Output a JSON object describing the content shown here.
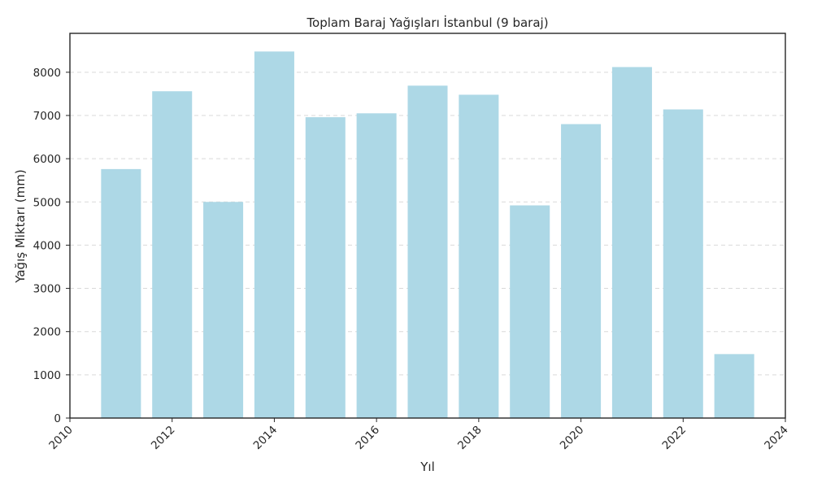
{
  "chart_data": {
    "type": "bar",
    "title": "Toplam Baraj Yağışları İstanbul (9 baraj)",
    "xlabel": "Yıl",
    "ylabel": "Yağış Miktarı (mm)",
    "x": [
      2011,
      2012,
      2013,
      2014,
      2015,
      2016,
      2017,
      2018,
      2019,
      2020,
      2021,
      2022,
      2023
    ],
    "values": [
      5760,
      7560,
      5000,
      8480,
      6960,
      7050,
      7690,
      7480,
      4920,
      6800,
      8120,
      7140,
      1480
    ],
    "xlim": [
      2010,
      2024
    ],
    "ylim": [
      0,
      8900
    ],
    "xticks": [
      2010,
      2012,
      2014,
      2016,
      2018,
      2020,
      2022,
      2024
    ],
    "yticks": [
      0,
      1000,
      2000,
      3000,
      4000,
      5000,
      6000,
      7000,
      8000
    ],
    "grid": "y-dashed",
    "bar_color": "#add8e6"
  }
}
